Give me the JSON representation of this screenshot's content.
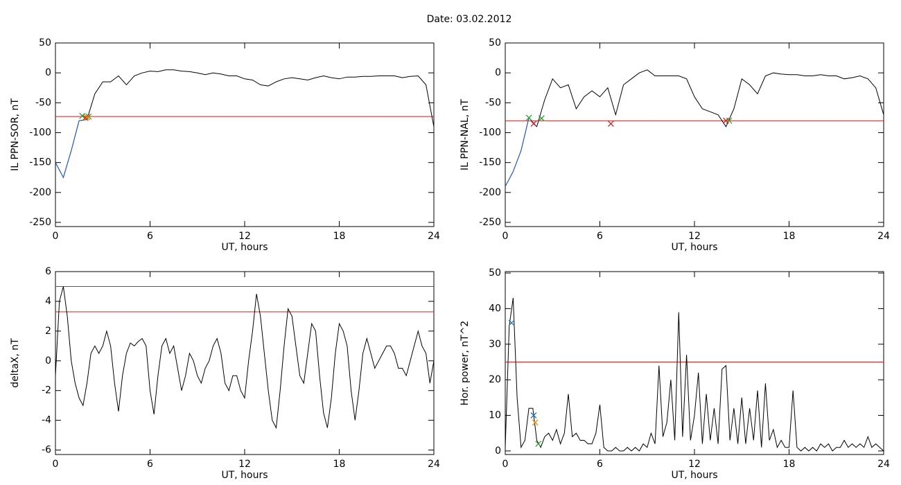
{
  "title": "Date:  03.02.2012",
  "chart_data": [
    {
      "type": "line",
      "ylabel": "IL PPN-SOR, nT",
      "xlabel": "UT, hours",
      "xlim": [
        0,
        24
      ],
      "xticks": [
        0,
        6,
        12,
        18,
        24
      ],
      "ylim": [
        -257,
        50
      ],
      "yticks": [
        50,
        0,
        -50,
        -100,
        -150,
        -200,
        -250
      ],
      "x": [
        0,
        0.5,
        1,
        1.5,
        2,
        2.5,
        3,
        3.5,
        4,
        4.5,
        5,
        5.5,
        6,
        6.5,
        7,
        7.5,
        8,
        8.5,
        9,
        9.5,
        10,
        10.5,
        11,
        11.5,
        12,
        12.5,
        13,
        13.5,
        14,
        14.5,
        15,
        15.5,
        16,
        16.5,
        17,
        17.5,
        18,
        18.5,
        19,
        19.5,
        20,
        20.5,
        21,
        21.5,
        22,
        22.5,
        23,
        23.5,
        24
      ],
      "series": [
        {
          "color": "#000000",
          "values": [
            -150,
            -175,
            -130,
            -80,
            -78,
            -35,
            -15,
            -15,
            -5,
            -20,
            -5,
            0,
            3,
            2,
            5,
            5,
            3,
            2,
            0,
            -3,
            0,
            -2,
            -5,
            -5,
            -10,
            -12,
            -20,
            -22,
            -15,
            -10,
            -8,
            -10,
            -12,
            -8,
            -5,
            -8,
            -10,
            -7,
            -7,
            -6,
            -6,
            -5,
            -5,
            -5,
            -8,
            -6,
            -5,
            -20,
            -90
          ]
        },
        {
          "color": "#1f5fd0",
          "x": [
            0,
            0.5,
            1,
            1.5,
            2
          ],
          "values": [
            -150,
            -175,
            -130,
            -80,
            -78
          ]
        }
      ],
      "hlines": [
        {
          "value": -73,
          "color": "#d02020"
        }
      ],
      "markers": [
        {
          "x": 1.7,
          "y": -72,
          "color": "#2ca02c"
        },
        {
          "x": 2.1,
          "y": -73,
          "color": "#2ca02c"
        },
        {
          "x": 1.9,
          "y": -75,
          "color": "#d02020"
        },
        {
          "x": 2.0,
          "y": -74,
          "color": "#e08a00"
        }
      ]
    },
    {
      "type": "line",
      "ylabel": "IL PPN-NAL, nT",
      "xlabel": "UT, hours",
      "xlim": [
        0,
        24
      ],
      "xticks": [
        0,
        6,
        12,
        18,
        24
      ],
      "ylim": [
        -257,
        50
      ],
      "yticks": [
        50,
        0,
        -50,
        -100,
        -150,
        -200,
        -250
      ],
      "x": [
        0,
        0.5,
        1,
        1.5,
        2,
        2.5,
        3,
        3.5,
        4,
        4.5,
        5,
        5.5,
        6,
        6.5,
        7,
        7.5,
        8,
        8.5,
        9,
        9.5,
        10,
        10.5,
        11,
        11.5,
        12,
        12.5,
        13,
        13.5,
        14,
        14.5,
        15,
        15.5,
        16,
        16.5,
        17,
        17.5,
        18,
        18.5,
        19,
        19.5,
        20,
        20.5,
        21,
        21.5,
        22,
        22.5,
        23,
        23.5,
        24
      ],
      "series": [
        {
          "color": "#000000",
          "values": [
            -190,
            -165,
            -130,
            -75,
            -90,
            -45,
            -10,
            -25,
            -20,
            -60,
            -40,
            -30,
            -40,
            -25,
            -70,
            -20,
            -10,
            0,
            5,
            -5,
            -5,
            -5,
            -5,
            -10,
            -40,
            -60,
            -65,
            -70,
            -90,
            -60,
            -10,
            -20,
            -35,
            -5,
            0,
            -2,
            -3,
            -3,
            -5,
            -5,
            -3,
            -5,
            -5,
            -10,
            -8,
            -5,
            -10,
            -25,
            -70
          ]
        },
        {
          "color": "#1f5fd0",
          "x": [
            0,
            0.5,
            1,
            1.5,
            2
          ],
          "values": [
            -190,
            -165,
            -130,
            -75,
            -90
          ]
        }
      ],
      "hlines": [
        {
          "value": -80,
          "color": "#d02020"
        }
      ],
      "markers": [
        {
          "x": 1.5,
          "y": -75,
          "color": "#2ca02c"
        },
        {
          "x": 2.3,
          "y": -76,
          "color": "#2ca02c"
        },
        {
          "x": 14.2,
          "y": -80,
          "color": "#2ca02c"
        },
        {
          "x": 1.8,
          "y": -85,
          "color": "#d02020"
        },
        {
          "x": 6.7,
          "y": -85,
          "color": "#d02020"
        },
        {
          "x": 14.0,
          "y": -80,
          "color": "#d02020"
        }
      ]
    },
    {
      "type": "line",
      "ylabel": "deltaX, nT",
      "xlabel": "UT, hours",
      "xlim": [
        0,
        24
      ],
      "xticks": [
        0,
        6,
        12,
        18,
        24
      ],
      "ylim": [
        -6.3,
        6
      ],
      "yticks": [
        6,
        4,
        2,
        0,
        -2,
        -4,
        -6
      ],
      "x": [
        0,
        0.25,
        0.5,
        0.75,
        1,
        1.25,
        1.5,
        1.75,
        2,
        2.25,
        2.5,
        2.75,
        3,
        3.25,
        3.5,
        3.75,
        4,
        4.25,
        4.5,
        4.75,
        5,
        5.25,
        5.5,
        5.75,
        6,
        6.25,
        6.5,
        6.75,
        7,
        7.25,
        7.5,
        7.75,
        8,
        8.25,
        8.5,
        8.75,
        9,
        9.25,
        9.5,
        9.75,
        10,
        10.25,
        10.5,
        10.75,
        11,
        11.25,
        11.5,
        11.75,
        12,
        12.25,
        12.5,
        12.75,
        13,
        13.25,
        13.5,
        13.75,
        14,
        14.25,
        14.5,
        14.75,
        15,
        15.25,
        15.5,
        15.75,
        16,
        16.25,
        16.5,
        16.75,
        17,
        17.25,
        17.5,
        17.75,
        18,
        18.25,
        18.5,
        18.75,
        19,
        19.25,
        19.5,
        19.75,
        20,
        20.25,
        20.5,
        20.75,
        21,
        21.25,
        21.5,
        21.75,
        22,
        22.25,
        22.5,
        22.75,
        23,
        23.25,
        23.5,
        23.75,
        24
      ],
      "series": [
        {
          "color": "#000000",
          "values": [
            -1,
            4,
            5,
            3,
            0,
            -1.5,
            -2.5,
            -3,
            -1.5,
            0.5,
            1,
            0.5,
            1,
            2,
            1,
            -1.5,
            -3.4,
            -1,
            0.5,
            1.2,
            1,
            1.3,
            1.5,
            1,
            -2,
            -3.6,
            -1,
            1,
            1.5,
            0.5,
            1,
            -0.5,
            -2,
            -1,
            0.5,
            0,
            -1,
            -1.5,
            -0.5,
            0,
            1,
            1.5,
            0.5,
            -1.5,
            -2,
            -1,
            -1,
            -2,
            -2.5,
            0,
            2,
            4.5,
            3,
            0.5,
            -2,
            -4,
            -4.5,
            -2,
            1,
            3.5,
            3,
            1,
            -1,
            -1.5,
            0.5,
            2.5,
            2,
            -1,
            -3.5,
            -4.5,
            -2.5,
            0.5,
            2.5,
            2,
            1,
            -2,
            -4,
            -2,
            0.5,
            1.5,
            0.5,
            -0.5,
            0,
            0.5,
            1,
            1,
            0.5,
            -0.5,
            -0.5,
            -1,
            0,
            1,
            2,
            1,
            0.5,
            -1.5,
            0
          ]
        }
      ],
      "hlines": [
        {
          "value": 5.0,
          "color": "#1f5fd0"
        },
        {
          "value": 3.3,
          "color": "#d02020"
        }
      ],
      "markers": []
    },
    {
      "type": "line",
      "ylabel": "Hor. power, nT^2",
      "xlabel": "UT, hours",
      "xlim": [
        0,
        24
      ],
      "xticks": [
        0,
        6,
        12,
        18,
        24
      ],
      "ylim": [
        -1,
        50.4
      ],
      "yticks": [
        50,
        40,
        30,
        20,
        10,
        0
      ],
      "x": [
        0,
        0.25,
        0.5,
        0.75,
        1,
        1.25,
        1.5,
        1.75,
        2,
        2.25,
        2.5,
        2.75,
        3,
        3.25,
        3.5,
        3.75,
        4,
        4.25,
        4.5,
        4.75,
        5,
        5.25,
        5.5,
        5.75,
        6,
        6.25,
        6.5,
        6.75,
        7,
        7.25,
        7.5,
        7.75,
        8,
        8.25,
        8.5,
        8.75,
        9,
        9.25,
        9.5,
        9.75,
        10,
        10.25,
        10.5,
        10.75,
        11,
        11.25,
        11.5,
        11.75,
        12,
        12.25,
        12.5,
        12.75,
        13,
        13.25,
        13.5,
        13.75,
        14,
        14.25,
        14.5,
        14.75,
        15,
        15.25,
        15.5,
        15.75,
        16,
        16.25,
        16.5,
        16.75,
        17,
        17.25,
        17.5,
        17.75,
        18,
        18.25,
        18.5,
        18.75,
        19,
        19.25,
        19.5,
        19.75,
        20,
        20.25,
        20.5,
        20.75,
        21,
        21.25,
        21.5,
        21.75,
        22,
        22.25,
        22.5,
        22.75,
        23,
        23.25,
        23.5,
        23.75,
        24
      ],
      "series": [
        {
          "color": "#000000",
          "values": [
            1,
            35,
            43,
            15,
            1,
            3,
            12,
            12,
            3,
            1,
            4,
            5,
            3,
            6,
            2,
            5,
            16,
            4,
            5,
            3,
            3,
            2,
            2,
            5,
            13,
            1,
            0,
            0,
            1,
            0,
            0,
            1,
            0,
            1,
            0,
            2,
            1,
            5,
            2,
            24,
            4,
            8,
            20,
            3,
            39,
            4,
            27,
            3,
            10,
            22,
            2,
            16,
            3,
            12,
            2,
            23,
            24,
            3,
            12,
            2,
            15,
            2,
            12,
            3,
            17,
            1,
            19,
            3,
            6,
            1,
            3,
            1,
            1,
            17,
            1,
            0,
            1,
            0,
            1,
            0,
            2,
            1,
            2,
            0,
            1,
            1,
            3,
            1,
            2,
            1,
            2,
            1,
            4,
            1,
            2,
            1,
            0
          ]
        }
      ],
      "hlines": [
        {
          "value": 25,
          "color": "#d02020"
        }
      ],
      "markers": [
        {
          "x": 0.4,
          "y": 36,
          "color": "#1f77b4"
        },
        {
          "x": 1.8,
          "y": 10,
          "color": "#1f77b4"
        },
        {
          "x": 1.9,
          "y": 8,
          "color": "#e08a00"
        },
        {
          "x": 2.1,
          "y": 2,
          "color": "#2ca02c"
        }
      ]
    }
  ]
}
